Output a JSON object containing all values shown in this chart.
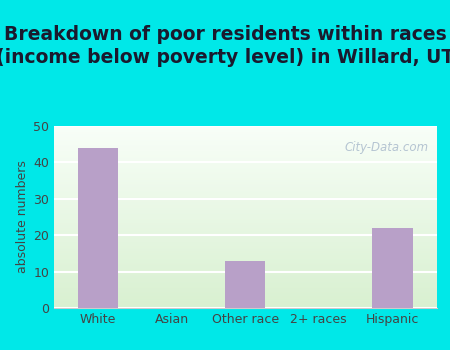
{
  "categories": [
    "White",
    "Asian",
    "Other race",
    "2+ races",
    "Hispanic"
  ],
  "values": [
    44,
    0,
    13,
    0,
    22
  ],
  "bar_color": "#b8a0c8",
  "title_line1": "Breakdown of poor residents within races",
  "title_line2": "(income below poverty level) in Willard, UT",
  "ylabel": "absolute numbers",
  "ylim": [
    0,
    50
  ],
  "yticks": [
    0,
    10,
    20,
    30,
    40,
    50
  ],
  "outer_bg": "#00e8e8",
  "watermark": "City-Data.com",
  "title_fontsize": 13.5,
  "ylabel_fontsize": 9,
  "tick_fontsize": 9,
  "grid_color": "#ffffff",
  "plot_bg_top": "#f8fef8",
  "plot_bg_bottom": "#d8f0d0"
}
